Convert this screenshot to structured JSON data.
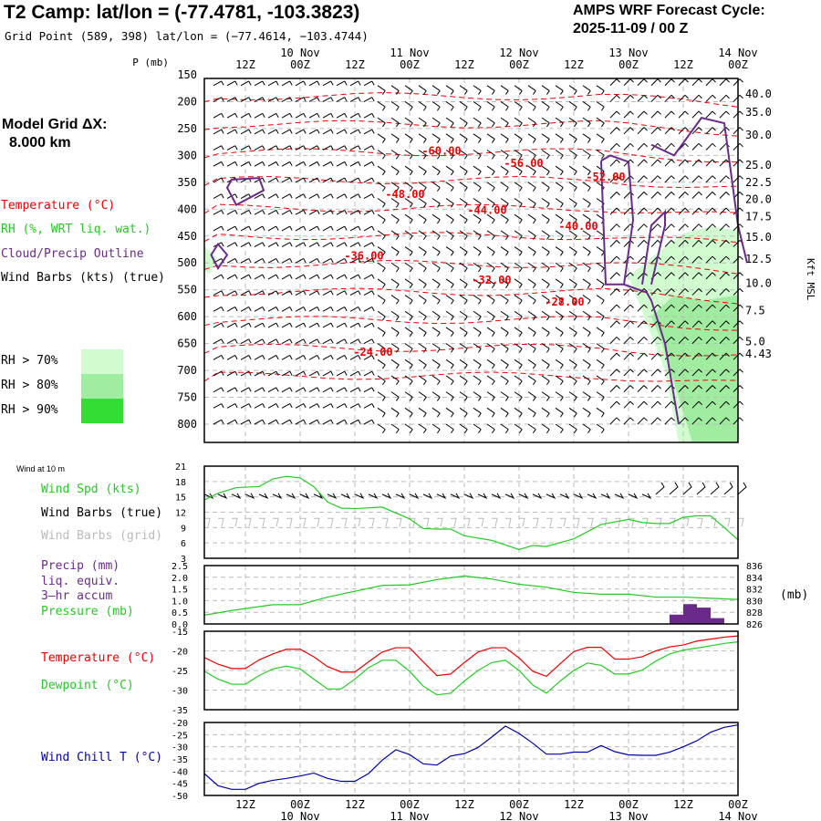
{
  "header": {
    "title": "T2 Camp:  lat/lon = (-77.4781, -103.3823)",
    "grid_point": "Grid Point (589, 398) lat/lon = (−77.4614, −103.4744)",
    "cycle_line1": "AMPS WRF Forecast Cycle:",
    "cycle_line2": "2025-11-09 / 00  Z"
  },
  "model_grid": {
    "line1": "Model Grid ΔX:",
    "line2": "8.000 km"
  },
  "legend_main": {
    "temperature": "Temperature (°C)",
    "rh": "RH (%, WRT liq. wat.)",
    "cloud": "Cloud/Precip Outline",
    "wind": "Wind Barbs (kts) (true)",
    "rh_levels": [
      {
        "label": "RH > 70%",
        "color": "#d0fcd0"
      },
      {
        "label": "RH > 80%",
        "color": "#a0eca0"
      },
      {
        "label": "RH > 90%",
        "color": "#33dd33"
      }
    ]
  },
  "legend_wind": {
    "title": "Wind at 10 m",
    "spd": "Wind Spd (kts)",
    "true": "Wind Barbs (true)",
    "grid": "Wind Barbs (grid)"
  },
  "legend_precip": {
    "l1": "Precip (mm)",
    "l2": "liq. equiv.",
    "l3": "3—hr accum",
    "l4": "Pressure (mb)",
    "unit_right": "(mb)"
  },
  "legend_temp": {
    "t": "Temperature (°C)",
    "td": "Dewpoint (°C)"
  },
  "legend_wc": {
    "wc": "Wind Chill T (°C)"
  },
  "colors": {
    "temp": "#ee0000",
    "green": "#22cc22",
    "purple": "#6a2a8a",
    "blue": "#0000aa",
    "grid": "#bbbbbb"
  },
  "chart_data": [
    {
      "type": "heatmap",
      "title": "Time-height cross-section",
      "x_ticks_top": [
        "12Z",
        "00Z",
        "12Z",
        "00Z",
        "12Z",
        "00Z",
        "12Z",
        "00Z",
        "12Z",
        "00Z"
      ],
      "date_labels": [
        "10 Nov",
        "11 Nov",
        "12 Nov",
        "13 Nov",
        "14 Nov"
      ],
      "ylabel_left": "P (mb)",
      "y_ticks_left": [
        150,
        200,
        250,
        300,
        350,
        400,
        450,
        500,
        550,
        600,
        650,
        700,
        750,
        800
      ],
      "ylabel_right": "Kft MSL",
      "y_ticks_right": [
        "40.0",
        "35.0",
        "30.0",
        "25.0",
        "22.5",
        "20.0",
        "17.5",
        "15.0",
        "12.5",
        "10.0",
        "7.5",
        "5.0",
        "4.43"
      ],
      "y_right_pressure": [
        186,
        220,
        262,
        318,
        350,
        382,
        414,
        452,
        493,
        538,
        589,
        646,
        661
      ],
      "temperature_contours": [
        {
          "label": "-60.00",
          "hour": 55,
          "p": 292
        },
        {
          "label": "-56.00",
          "hour": 73,
          "p": 315
        },
        {
          "label": "-52.00",
          "hour": 91,
          "p": 340
        },
        {
          "label": "-48.00",
          "hour": 47,
          "p": 372
        },
        {
          "label": "-44.00",
          "hour": 65,
          "p": 402
        },
        {
          "label": "-40.00",
          "hour": 85,
          "p": 432
        },
        {
          "label": "-36.00",
          "hour": 38,
          "p": 487
        },
        {
          "label": "-32.00",
          "hour": 66,
          "p": 532
        },
        {
          "label": "-28.00",
          "hour": 82,
          "p": 573
        },
        {
          "label": "-24.00",
          "hour": 40,
          "p": 666
        }
      ]
    },
    {
      "type": "line",
      "title": "Wind at 10 m",
      "y_ticks": [
        21,
        18,
        15,
        12,
        9,
        6,
        3
      ],
      "ylim": [
        3,
        21
      ],
      "series": [
        {
          "name": "Wind Spd (kts)",
          "hours": [
            3,
            6,
            10,
            15,
            18,
            21,
            24,
            27,
            30,
            33,
            36,
            42,
            48,
            51,
            54,
            57,
            60,
            66,
            72,
            75,
            78,
            84,
            90,
            96,
            99,
            102,
            105,
            108,
            111,
            114,
            117,
            120
          ],
          "values": [
            14.4,
            15.7,
            16.8,
            17.0,
            18.5,
            19.0,
            18.7,
            17.0,
            14.0,
            12.8,
            12.7,
            13.0,
            10.7,
            8.8,
            8.7,
            8.7,
            7.4,
            6.5,
            4.7,
            5.5,
            5.3,
            6.8,
            9.6,
            10.6,
            10.0,
            9.8,
            9.8,
            11.0,
            11.3,
            11.3,
            9.0,
            6.6
          ]
        }
      ]
    },
    {
      "type": "bar",
      "title": "Precip (mm) / Pressure (mb)",
      "y_ticks_left": [
        "2.5",
        "2.0",
        "1.5",
        "1.0",
        "0.5",
        "0.0"
      ],
      "y_ticks_right": [
        836,
        834,
        832,
        830,
        828,
        826
      ],
      "ylim_left": [
        0,
        2.5
      ],
      "ylim_right": [
        826,
        836
      ],
      "precip": {
        "hours": [
          108,
          111,
          114,
          117
        ],
        "values": [
          0.4,
          0.85,
          0.7,
          0.25
        ]
      },
      "pressure": {
        "hours": [
          3,
          9,
          18,
          24,
          30,
          36,
          42,
          48,
          54,
          60,
          66,
          72,
          78,
          84,
          90,
          96,
          102,
          108,
          114,
          120
        ],
        "values": [
          827.5,
          828.3,
          829.3,
          829.3,
          830.6,
          831.6,
          832.6,
          832.7,
          833.6,
          834.2,
          833.7,
          832.8,
          832.3,
          831.4,
          831.1,
          831.1,
          830.6,
          830.6,
          830.4,
          830.2
        ]
      }
    },
    {
      "type": "line",
      "title": "Temperature / Dewpoint",
      "y_ticks": [
        -15,
        -20,
        -25,
        -30,
        -35
      ],
      "ylim": [
        -35,
        -15
      ],
      "series": [
        {
          "name": "Temperature (°C)",
          "hours": [
            3,
            6,
            9,
            12,
            15,
            18,
            21,
            24,
            27,
            30,
            33,
            36,
            39,
            42,
            45,
            48,
            51,
            54,
            57,
            60,
            63,
            66,
            69,
            72,
            75,
            78,
            81,
            84,
            87,
            90,
            93,
            96,
            99,
            102,
            105,
            108,
            111,
            114,
            117,
            120
          ],
          "values": [
            -21.7,
            -23.4,
            -24.5,
            -24.5,
            -22.3,
            -20.8,
            -19.6,
            -19.6,
            -21.5,
            -24.0,
            -25.4,
            -25.4,
            -22.8,
            -20.3,
            -19.2,
            -19.2,
            -22.8,
            -26.3,
            -25.9,
            -23.0,
            -20.3,
            -19.2,
            -19.2,
            -21.8,
            -25.2,
            -26.5,
            -23.3,
            -20.2,
            -19.1,
            -19.1,
            -22.1,
            -22.1,
            -21.5,
            -20.0,
            -19.0,
            -18.5,
            -17.5,
            -17.0,
            -16.5,
            -16.2
          ]
        },
        {
          "name": "Dewpoint (°C)",
          "hours": [
            3,
            6,
            9,
            12,
            15,
            18,
            21,
            24,
            27,
            30,
            33,
            36,
            39,
            42,
            45,
            48,
            51,
            54,
            57,
            60,
            63,
            66,
            69,
            72,
            75,
            78,
            81,
            84,
            87,
            90,
            93,
            96,
            99,
            102,
            105,
            108,
            111,
            114,
            117,
            120
          ],
          "values": [
            -25.2,
            -27.2,
            -28.5,
            -28.5,
            -26.3,
            -24.6,
            -23.9,
            -24.6,
            -27.2,
            -29.7,
            -29.7,
            -27.2,
            -24.3,
            -22.4,
            -22.4,
            -25.2,
            -29.0,
            -31.2,
            -30.8,
            -27.7,
            -25.0,
            -23.0,
            -22.4,
            -25.0,
            -28.7,
            -30.8,
            -27.7,
            -25.0,
            -23.1,
            -23.7,
            -25.9,
            -25.9,
            -24.9,
            -22.6,
            -20.8,
            -19.8,
            -19.3,
            -18.7,
            -18.1,
            -17.7
          ]
        }
      ]
    },
    {
      "type": "line",
      "title": "Wind Chill",
      "y_ticks": [
        -20,
        -25,
        -30,
        -35,
        -40,
        -45,
        -50
      ],
      "ylim": [
        -50,
        -20
      ],
      "series": [
        {
          "name": "Wind Chill T (°C)",
          "hours": [
            3,
            6,
            9,
            12,
            15,
            18,
            21,
            24,
            27,
            30,
            33,
            36,
            39,
            42,
            45,
            48,
            51,
            54,
            57,
            60,
            63,
            66,
            69,
            72,
            75,
            78,
            81,
            84,
            87,
            90,
            93,
            96,
            99,
            102,
            105,
            108,
            111,
            114,
            117,
            120
          ],
          "values": [
            -41.0,
            -46.0,
            -47.5,
            -47.5,
            -45.0,
            -43.8,
            -43.0,
            -42.0,
            -40.8,
            -43.0,
            -44.2,
            -44.2,
            -41.0,
            -35.5,
            -31.2,
            -33.2,
            -37.0,
            -37.5,
            -33.8,
            -32.8,
            -30.3,
            -26.0,
            -21.5,
            -24.5,
            -28.5,
            -33.0,
            -33.0,
            -32.2,
            -32.2,
            -29.5,
            -32.0,
            -33.3,
            -33.5,
            -33.5,
            -32.2,
            -30.0,
            -27.5,
            -24.0,
            -22.0,
            -21.0
          ]
        }
      ]
    }
  ]
}
